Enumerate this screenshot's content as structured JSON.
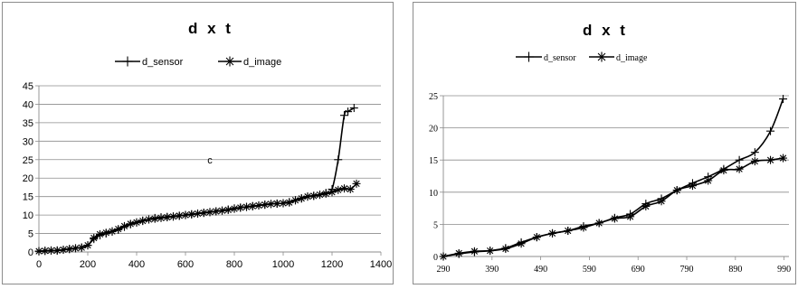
{
  "chart_data": [
    {
      "type": "line",
      "title": "d x t",
      "xlim": [
        0,
        1400
      ],
      "ylim": [
        0,
        45
      ],
      "xticks": [
        0,
        200,
        400,
        600,
        800,
        1000,
        1200,
        1400
      ],
      "yticks": [
        0,
        5,
        10,
        15,
        20,
        25,
        30,
        35,
        40,
        45
      ],
      "grid": "horizontal",
      "legend": "top",
      "annotation": {
        "text": "c",
        "x": 700,
        "y": 25
      },
      "series": [
        {
          "name": "d_sensor",
          "marker": "+",
          "x": [
            0,
            25,
            50,
            75,
            100,
            125,
            150,
            175,
            200,
            225,
            250,
            275,
            300,
            325,
            350,
            375,
            400,
            425,
            450,
            475,
            500,
            525,
            550,
            575,
            600,
            625,
            650,
            675,
            700,
            725,
            750,
            775,
            800,
            825,
            850,
            875,
            900,
            925,
            950,
            975,
            1000,
            1025,
            1050,
            1075,
            1100,
            1125,
            1150,
            1175,
            1200,
            1225,
            1250,
            1265,
            1290
          ],
          "y": [
            0.2,
            0.3,
            0.4,
            0.4,
            0.6,
            0.8,
            1.0,
            1.2,
            1.8,
            3.5,
            4.5,
            5.0,
            5.5,
            6.0,
            6.8,
            7.5,
            8.0,
            8.5,
            8.8,
            9.2,
            9.4,
            9.5,
            9.6,
            9.8,
            10.0,
            10.2,
            10.4,
            10.6,
            10.8,
            11.0,
            11.2,
            11.5,
            11.8,
            12.0,
            12.2,
            12.4,
            12.6,
            12.8,
            13.0,
            13.1,
            13.2,
            13.5,
            14.0,
            14.5,
            15.0,
            15.2,
            15.5,
            16.0,
            17.0,
            25.0,
            37.0,
            38.0,
            39.0
          ]
        },
        {
          "name": "d_image",
          "marker": "*",
          "x": [
            0,
            25,
            50,
            75,
            100,
            125,
            150,
            175,
            200,
            225,
            250,
            275,
            300,
            325,
            350,
            375,
            400,
            425,
            450,
            475,
            500,
            525,
            550,
            575,
            600,
            625,
            650,
            675,
            700,
            725,
            750,
            775,
            800,
            825,
            850,
            875,
            900,
            925,
            950,
            975,
            1000,
            1025,
            1050,
            1075,
            1100,
            1125,
            1150,
            1175,
            1200,
            1225,
            1250,
            1275,
            1300
          ],
          "y": [
            0.2,
            0.3,
            0.4,
            0.4,
            0.6,
            0.8,
            1.0,
            1.2,
            1.8,
            3.8,
            4.8,
            5.2,
            5.6,
            6.2,
            7.0,
            7.6,
            8.0,
            8.4,
            8.8,
            9.0,
            9.2,
            9.4,
            9.6,
            9.8,
            10.0,
            10.2,
            10.4,
            10.6,
            10.8,
            11.0,
            11.2,
            11.4,
            11.7,
            12.0,
            12.2,
            12.4,
            12.6,
            12.8,
            13.0,
            13.1,
            13.2,
            13.4,
            14.0,
            14.5,
            15.0,
            15.2,
            15.5,
            15.8,
            16.2,
            16.8,
            17.2,
            17.0,
            18.5
          ]
        }
      ]
    },
    {
      "type": "line",
      "title": "d x t",
      "xlim": [
        290,
        1000
      ],
      "ylim": [
        0,
        25
      ],
      "xticks": [
        290,
        390,
        490,
        590,
        690,
        790,
        890,
        990
      ],
      "yticks": [
        0,
        5,
        10,
        15,
        20,
        25
      ],
      "grid": "horizontal",
      "legend": "top",
      "series": [
        {
          "name": "d_sensor",
          "marker": "+",
          "x": [
            290,
            322,
            354,
            386,
            418,
            450,
            482,
            514,
            546,
            578,
            610,
            642,
            674,
            706,
            738,
            770,
            802,
            834,
            866,
            898,
            930,
            962,
            988
          ],
          "y": [
            0,
            0.4,
            0.7,
            0.9,
            1.3,
            2.2,
            3.0,
            3.6,
            4.0,
            4.7,
            5.2,
            6.0,
            6.6,
            8.2,
            9.0,
            10.3,
            11.4,
            12.4,
            13.6,
            15.0,
            16.2,
            19.5,
            24.5
          ]
        },
        {
          "name": "d_image",
          "marker": "*",
          "x": [
            290,
            322,
            354,
            386,
            418,
            450,
            482,
            514,
            546,
            578,
            610,
            642,
            674,
            706,
            738,
            770,
            802,
            834,
            866,
            898,
            930,
            962,
            988
          ],
          "y": [
            0,
            0.5,
            0.8,
            0.9,
            1.2,
            2.0,
            3.0,
            3.6,
            4.0,
            4.5,
            5.2,
            5.9,
            6.2,
            7.8,
            8.6,
            10.3,
            11.0,
            11.8,
            13.4,
            13.6,
            14.8,
            15.0,
            15.3
          ]
        }
      ]
    }
  ]
}
